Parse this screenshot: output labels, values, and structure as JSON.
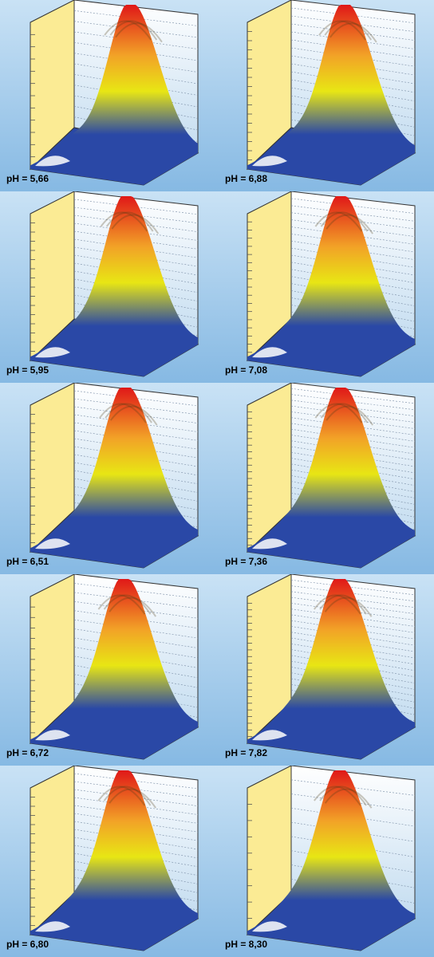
{
  "figure": {
    "panels": [
      {
        "label": "pH = 5,66"
      },
      {
        "label": "pH = 6,88"
      },
      {
        "label": "pH = 5,95"
      },
      {
        "label": "pH = 7,08"
      },
      {
        "label": "pH = 6,51"
      },
      {
        "label": "pH = 7,36"
      },
      {
        "label": "pH = 6,72"
      },
      {
        "label": "pH = 7,82"
      },
      {
        "label": "pH = 6,80"
      },
      {
        "label": "pH = 8,30"
      }
    ],
    "colors": {
      "background_top": "#c9e2f5",
      "background_bottom": "#86b9e3",
      "side_wall": "#fbeb94",
      "back_wall_top": "#ffffff",
      "back_wall_bottom": "#c3dcf0",
      "surface_low": "#2a48a6",
      "surface_mid": "#e8e614",
      "surface_high": "#e01818"
    }
  },
  "chart_data": [
    {
      "type": "surface",
      "title": "pH = 5,66",
      "series": []
    },
    {
      "type": "surface",
      "title": "pH = 6,88",
      "series": []
    },
    {
      "type": "surface",
      "title": "pH = 5,95",
      "series": []
    },
    {
      "type": "surface",
      "title": "pH = 7,08",
      "series": []
    },
    {
      "type": "surface",
      "title": "pH = 6,51",
      "series": []
    },
    {
      "type": "surface",
      "title": "pH = 7,36",
      "series": []
    },
    {
      "type": "surface",
      "title": "pH = 6,72",
      "series": []
    },
    {
      "type": "surface",
      "title": "pH = 7,82",
      "series": []
    },
    {
      "type": "surface",
      "title": "pH = 6,80",
      "series": []
    },
    {
      "type": "surface",
      "title": "pH = 8,30",
      "series": []
    }
  ]
}
